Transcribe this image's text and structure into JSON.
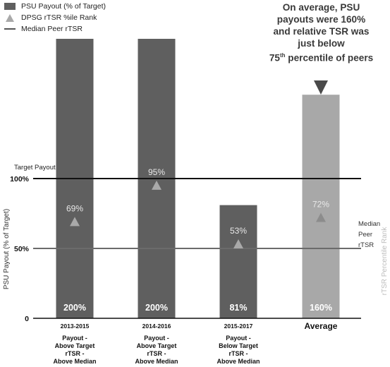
{
  "legend": {
    "bar": "PSU Payout (% of Target)",
    "triangle": "DPSG rTSR %ile Rank",
    "line": "Median Peer rTSR"
  },
  "annotation": {
    "line1": "On average, PSU",
    "line2": "payouts were 160%",
    "line3": "and relative TSR was",
    "line4": "just below",
    "line5_num": "75",
    "line5_sup": "th",
    "line5_rest": " percentile of peers"
  },
  "chart_data": {
    "type": "bar",
    "categories": [
      "2013-2015",
      "2014-2016",
      "2015-2017",
      "Average"
    ],
    "category_notes": [
      [
        "Payout -",
        "Above Target",
        "rTSR -",
        "Above Median"
      ],
      [
        "Payout -",
        "Above Target",
        "rTSR -",
        "Above Median"
      ],
      [
        "Payout -",
        "Below Target",
        "rTSR -",
        "Above Median"
      ],
      []
    ],
    "series": [
      {
        "name": "PSU Payout (% of Target)",
        "values": [
          200,
          200,
          81,
          160
        ],
        "value_labels": [
          "200%",
          "200%",
          "81%",
          "160%"
        ]
      },
      {
        "name": "DPSG rTSR %ile Rank",
        "values": [
          69,
          95,
          53,
          72
        ],
        "value_labels": [
          "69%",
          "95%",
          "53%",
          "72%"
        ]
      }
    ],
    "ylabel": "PSU Payout (% of Target)",
    "y2label": "rTSR Percentile Rank",
    "yticks": [
      {
        "value": 0,
        "label": "0"
      },
      {
        "value": 50,
        "label": "50%"
      },
      {
        "value": 100,
        "label": "100%"
      }
    ],
    "reference_lines": [
      {
        "value": 100,
        "label": "Target Payout"
      },
      {
        "value": 50,
        "label": "Median Peer rTSR"
      }
    ],
    "right_label_lines": [
      "Median",
      "Peer",
      "rTSR"
    ],
    "colors": {
      "bar": "#5f5f5f",
      "average_bar": "#a8a8a8",
      "triangle": "#a9a9a9",
      "average_triangle": "#8c8c8c",
      "pointer": "#4a4a4a"
    }
  }
}
